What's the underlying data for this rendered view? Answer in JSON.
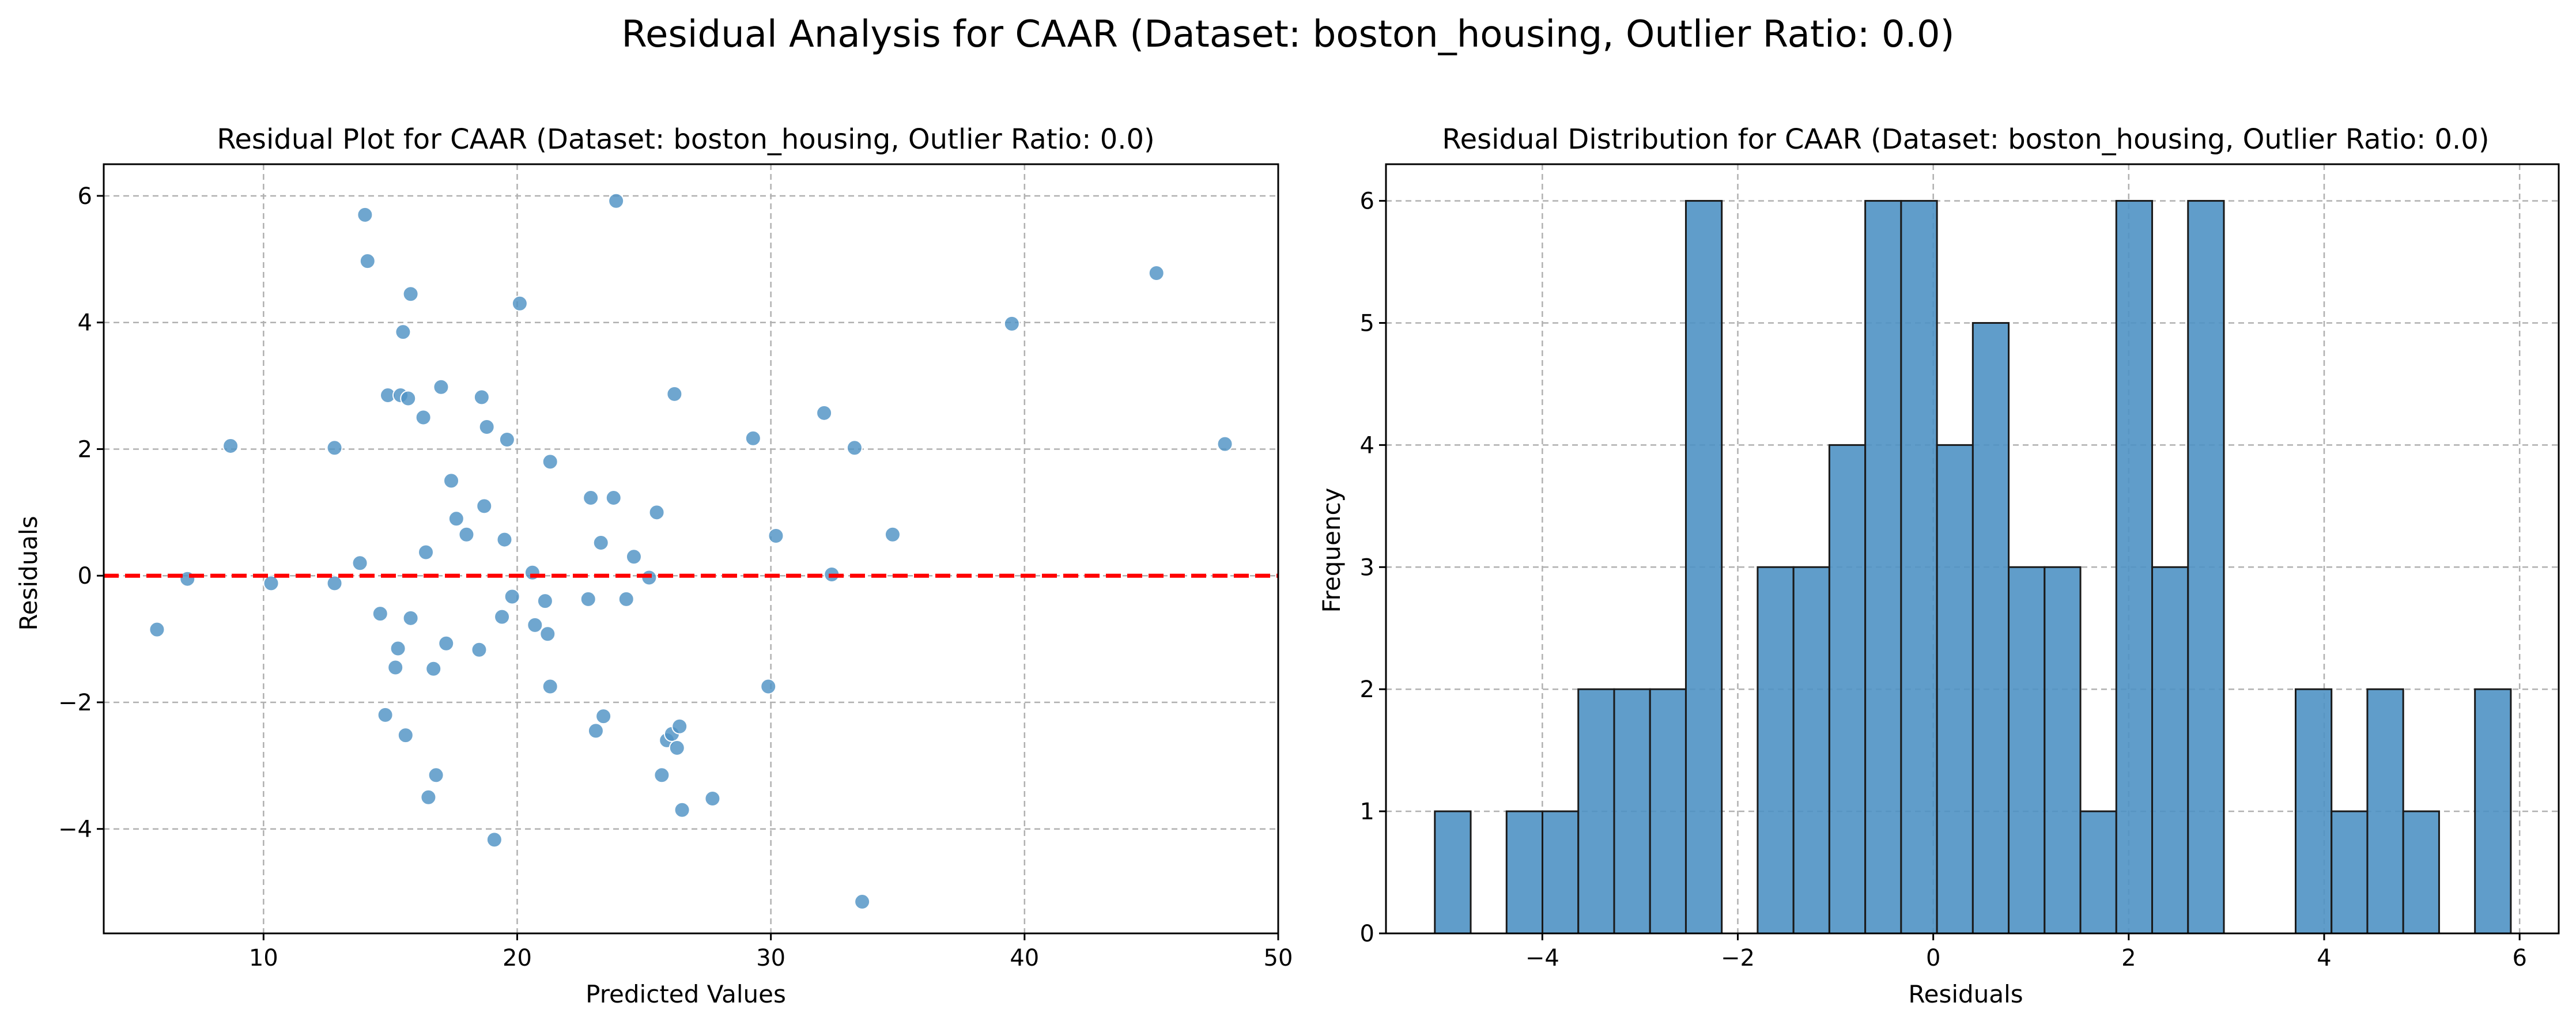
{
  "figure": {
    "suptitle": "Residual Analysis for CAAR (Dataset: boston_housing, Outlier Ratio: 0.0)"
  },
  "colors": {
    "point": "#4f92c4",
    "bar_fill": "#4f92c4",
    "bar_edge": "#1a1a1a",
    "zero_line": "#ff0000",
    "grid": "#b0b0b0"
  },
  "chart_data": [
    {
      "type": "scatter",
      "title": "Residual Plot for CAAR (Dataset: boston_housing, Outlier Ratio: 0.0)",
      "xlabel": "Predicted Values",
      "ylabel": "Residuals",
      "xlim": [
        3.7,
        50.0
      ],
      "ylim": [
        -5.65,
        6.5
      ],
      "xticks": [
        10,
        20,
        30,
        40,
        50
      ],
      "yticks": [
        -4,
        -2,
        0,
        2,
        4,
        6
      ],
      "grid": true,
      "reference_line": {
        "y": 0,
        "style": "dashed",
        "color": "#ff0000"
      },
      "points": [
        [
          5.8,
          -0.85
        ],
        [
          7.0,
          -0.05
        ],
        [
          8.7,
          2.05
        ],
        [
          10.3,
          -0.12
        ],
        [
          12.8,
          2.02
        ],
        [
          12.8,
          -0.12
        ],
        [
          13.8,
          0.2
        ],
        [
          14.0,
          5.7
        ],
        [
          14.1,
          4.97
        ],
        [
          14.6,
          -0.6
        ],
        [
          14.8,
          -2.2
        ],
        [
          14.9,
          2.85
        ],
        [
          15.2,
          -1.45
        ],
        [
          15.3,
          -1.15
        ],
        [
          15.4,
          2.85
        ],
        [
          15.5,
          3.85
        ],
        [
          15.6,
          -2.52
        ],
        [
          15.7,
          2.8
        ],
        [
          15.8,
          4.45
        ],
        [
          15.8,
          -0.67
        ],
        [
          16.3,
          2.5
        ],
        [
          16.4,
          0.37
        ],
        [
          16.5,
          -3.5
        ],
        [
          16.7,
          -1.47
        ],
        [
          16.8,
          -3.15
        ],
        [
          17.0,
          2.98
        ],
        [
          17.2,
          -1.07
        ],
        [
          17.4,
          1.5
        ],
        [
          17.6,
          0.9
        ],
        [
          18.0,
          0.65
        ],
        [
          18.5,
          -1.17
        ],
        [
          18.6,
          2.82
        ],
        [
          18.7,
          1.1
        ],
        [
          18.8,
          2.35
        ],
        [
          19.1,
          -4.17
        ],
        [
          19.4,
          -0.65
        ],
        [
          19.5,
          0.57
        ],
        [
          19.6,
          2.15
        ],
        [
          19.8,
          -0.33
        ],
        [
          20.1,
          4.3
        ],
        [
          20.6,
          0.05
        ],
        [
          20.7,
          -0.78
        ],
        [
          21.1,
          -0.4
        ],
        [
          21.2,
          -0.92
        ],
        [
          21.3,
          1.8
        ],
        [
          21.3,
          -1.75
        ],
        [
          22.8,
          -0.37
        ],
        [
          22.9,
          1.23
        ],
        [
          23.1,
          -2.45
        ],
        [
          23.3,
          0.52
        ],
        [
          23.4,
          -2.22
        ],
        [
          23.8,
          1.23
        ],
        [
          23.9,
          5.92
        ],
        [
          24.3,
          -0.37
        ],
        [
          24.6,
          0.3
        ],
        [
          25.2,
          -0.03
        ],
        [
          25.5,
          1.0
        ],
        [
          25.7,
          -3.15
        ],
        [
          25.9,
          -2.6
        ],
        [
          26.1,
          -2.5
        ],
        [
          26.2,
          2.87
        ],
        [
          26.3,
          -2.72
        ],
        [
          26.4,
          -2.38
        ],
        [
          26.5,
          -3.7
        ],
        [
          27.7,
          -3.52
        ],
        [
          29.3,
          2.17
        ],
        [
          29.9,
          -1.75
        ],
        [
          30.2,
          0.63
        ],
        [
          32.1,
          2.57
        ],
        [
          32.4,
          0.02
        ],
        [
          33.3,
          2.02
        ],
        [
          33.6,
          -5.15
        ],
        [
          34.8,
          0.65
        ],
        [
          39.5,
          3.98
        ],
        [
          45.2,
          4.78
        ],
        [
          47.9,
          2.08
        ]
      ]
    },
    {
      "type": "bar",
      "subtype": "histogram",
      "title": "Residual Distribution for CAAR (Dataset: boston_housing, Outlier Ratio: 0.0)",
      "xlabel": "Residuals",
      "ylabel": "Frequency",
      "xlim": [
        -5.6,
        6.4
      ],
      "ylim": [
        0,
        6.3
      ],
      "xticks": [
        -4,
        -2,
        0,
        2,
        4,
        6
      ],
      "yticks": [
        0,
        1,
        2,
        3,
        4,
        5,
        6
      ],
      "grid": true,
      "bin_start": -5.1,
      "bin_width": 0.367,
      "counts": [
        1,
        0,
        1,
        1,
        2,
        2,
        2,
        6,
        0,
        3,
        3,
        4,
        6,
        6,
        4,
        5,
        3,
        3,
        1,
        6,
        3,
        6,
        0,
        0,
        2,
        1,
        2,
        1,
        0,
        2
      ]
    }
  ]
}
